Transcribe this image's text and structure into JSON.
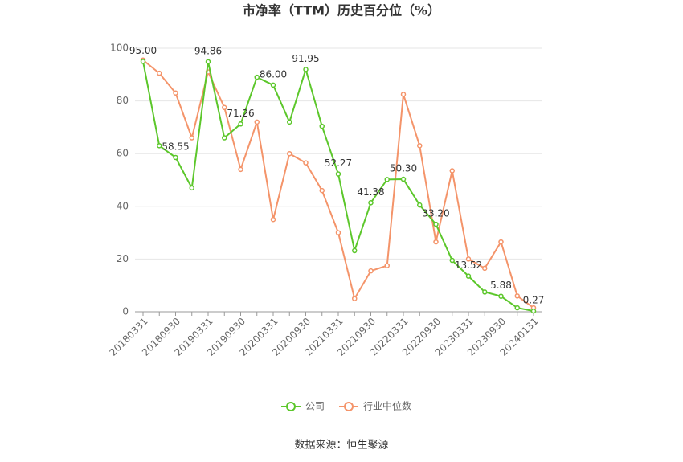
{
  "chart_data": {
    "type": "line",
    "title": "市净率（TTM）历史百分位（%）",
    "source": "数据来源：恒生聚源",
    "categories": [
      "20180331",
      null,
      "20180930",
      null,
      "20190331",
      null,
      "20190930",
      null,
      "20200331",
      null,
      "20200930",
      null,
      "20210331",
      null,
      "20210930",
      null,
      "20220331",
      null,
      "20220930",
      null,
      "20230331",
      null,
      "20230930",
      null,
      "20240131"
    ],
    "series": [
      {
        "name": "公司",
        "color": "#5cc72b",
        "values": [
          95.0,
          63,
          58.55,
          47,
          94.86,
          66,
          71.26,
          89,
          86.0,
          72,
          91.95,
          70.4,
          52.27,
          23.2,
          41.38,
          50.2,
          50.3,
          40.5,
          33.2,
          19.5,
          13.52,
          7.5,
          5.88,
          1.5,
          0.27
        ],
        "value_labels": [
          "95.00",
          null,
          "58.55",
          null,
          "94.86",
          null,
          "71.26",
          null,
          "86.00",
          null,
          "91.95",
          null,
          "52.27",
          null,
          "41.38",
          null,
          "50.30",
          null,
          "33.20",
          null,
          "13.52",
          null,
          "5.88",
          null,
          "0.27"
        ]
      },
      {
        "name": "行业中位数",
        "color": "#f4946a",
        "values": [
          95.5,
          90.5,
          83,
          66,
          91,
          77.5,
          54,
          72,
          35,
          60,
          56.5,
          46,
          30,
          5,
          15.5,
          17.5,
          82.5,
          63,
          26.5,
          53.5,
          20,
          16.5,
          26.5,
          6,
          1.5
        ]
      }
    ],
    "ylim": [
      0,
      100
    ],
    "yticks": [
      0,
      20,
      40,
      60,
      80,
      100
    ],
    "grid": true,
    "legend": "bottom"
  }
}
